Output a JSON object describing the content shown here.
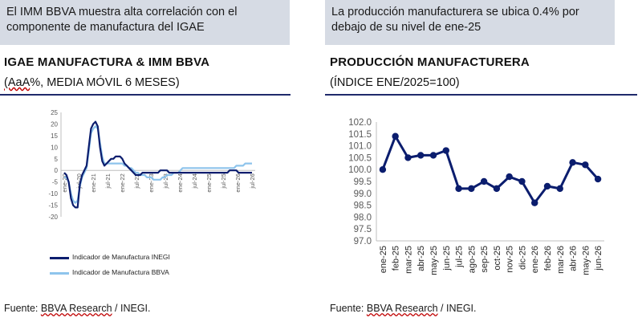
{
  "left_panel": {
    "callout": "El IMM BBVA muestra alta correlación con el componente de manufactura del IGAE",
    "title": "IGAE MANUFACTURA & IMM BBVA",
    "subtitle_part1": "(AaA",
    "subtitle_part2": "%, MEDIA MÓVIL 6 MESES)",
    "source_prefix": "Fuente: ",
    "source_brand": "BBVA Research",
    "source_suffix": " / INEGI."
  },
  "right_panel": {
    "callout": "La producción manufacturera se ubica 0.4% por debajo de su nivel de ene-25",
    "title": "PRODUCCIÓN MANUFACTURERA",
    "subtitle": "(ÍNDICE ENE/2025=100)",
    "source_prefix": "Fuente: ",
    "source_brand": "BBVA Research",
    "source_suffix": " / INEGI."
  },
  "colors": {
    "inegi": "#0b1d6e",
    "bbva": "#8ec4ec",
    "accent": "#1f2a6b",
    "callout_bg": "#d6dbe4",
    "underline_red": "#c00000"
  },
  "chart_data": [
    {
      "type": "line",
      "title": "IGAE MANUFACTURA & IMM BBVA",
      "subtitle": "(AaA%, MEDIA MÓVIL 6 MESES)",
      "x_ticks": [
        "ene-20",
        "jul-20",
        "ene-21",
        "jul-21",
        "ene-22",
        "jul-22",
        "ene-23",
        "jul-23",
        "ene-24",
        "jul-24",
        "ene-25",
        "jul-25",
        "ene-26",
        "jul-26"
      ],
      "ylim": [
        -20,
        25
      ],
      "y_ticks": [
        -20,
        -15,
        -10,
        -5,
        0,
        5,
        10,
        15,
        20,
        25
      ],
      "legend_position": "bottom",
      "series": [
        {
          "name": "Indicador de Manufactura INEGI",
          "values": [
            -1,
            -2,
            -5,
            -12,
            -15,
            -16,
            -16,
            -6,
            -2,
            0,
            2,
            10,
            18,
            20,
            21,
            19,
            10,
            4,
            2,
            3,
            4,
            5,
            5,
            6,
            6,
            6,
            5,
            3,
            2,
            1,
            0,
            -1,
            -2,
            -2,
            -2,
            -1,
            -1,
            -1,
            -1,
            -1,
            -1,
            -1,
            -1,
            0,
            0,
            0,
            0,
            -1,
            -1,
            -1,
            -1,
            -1,
            -1,
            -1,
            -1,
            -1,
            -1,
            -1,
            -1,
            -1,
            -1,
            -1,
            -1,
            -1,
            -1,
            -1,
            -1,
            -1,
            -1,
            -1,
            -1,
            -1,
            -1,
            -1,
            0,
            0,
            0,
            0,
            -1,
            -1,
            -1,
            -1,
            -1,
            -1,
            -1
          ]
        },
        {
          "name": "Indicador de Manufactura BBVA",
          "values": [
            -3,
            -3,
            -5,
            -10,
            -13,
            -14,
            -13,
            -7,
            -3,
            -1,
            1,
            8,
            16,
            18,
            19,
            18,
            12,
            6,
            3,
            3,
            3,
            3,
            3,
            3,
            3,
            3,
            3,
            2,
            2,
            1,
            1,
            0,
            -1,
            -1,
            -2,
            -2,
            -2,
            -3,
            -3,
            -3,
            -4,
            -4,
            -4,
            -4,
            -3,
            -3,
            -2,
            -2,
            -2,
            -1,
            -1,
            -1,
            0,
            1,
            1,
            1,
            1,
            1,
            1,
            1,
            1,
            1,
            1,
            1,
            1,
            1,
            1,
            1,
            1,
            1,
            1,
            1,
            1,
            1,
            1,
            1,
            1,
            2,
            2,
            2,
            2,
            3,
            3,
            3,
            3
          ]
        }
      ]
    },
    {
      "type": "line",
      "title": "PRODUCCIÓN MANUFACTURERA",
      "subtitle": "(ÍNDICE ENE/2025=100)",
      "categories": [
        "ene-25",
        "feb-25",
        "mar-25",
        "abr-25",
        "may-25",
        "jun-25",
        "jul-25",
        "ago-25",
        "sep-25",
        "oct-25",
        "nov-25",
        "dic-25",
        "ene-26",
        "feb-26",
        "mar-26",
        "abr-26",
        "may-26",
        "jun-26"
      ],
      "values": [
        100.0,
        101.4,
        100.5,
        100.6,
        100.6,
        100.8,
        99.2,
        99.2,
        99.5,
        99.2,
        99.7,
        99.5,
        98.6,
        99.3,
        99.2,
        100.3,
        100.2,
        99.6
      ],
      "ylim": [
        97.0,
        102.0
      ],
      "y_ticks": [
        "97.0",
        "97.5",
        "98.0",
        "98.5",
        "99.0",
        "99.5",
        "100.0",
        "100.5",
        "101.0",
        "101.5",
        "102.0"
      ]
    }
  ]
}
